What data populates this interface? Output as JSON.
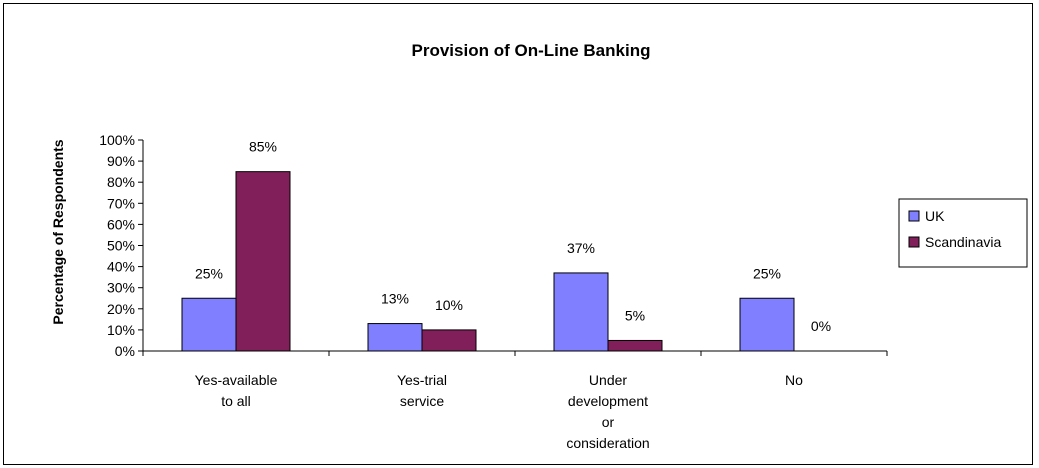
{
  "chart_data": {
    "type": "bar",
    "title": "Provision of On-Line Banking",
    "xlabel": "",
    "ylabel": "Percentage of Respondents",
    "ylim": [
      0,
      100
    ],
    "yticks": [
      "0%",
      "10%",
      "20%",
      "30%",
      "40%",
      "50%",
      "60%",
      "70%",
      "80%",
      "90%",
      "100%"
    ],
    "categories": [
      [
        "Yes-available",
        "to all"
      ],
      [
        "Yes-trial",
        "service"
      ],
      [
        "Under",
        "development",
        "or",
        "consideration"
      ],
      [
        "No"
      ]
    ],
    "series": [
      {
        "name": "UK",
        "color": "#7f7fff",
        "values": [
          25,
          13,
          37,
          25
        ],
        "labels": [
          "25%",
          "13%",
          "37%",
          "25%"
        ]
      },
      {
        "name": "Scandinavia",
        "color": "#801f5a",
        "values": [
          85,
          10,
          5,
          0
        ],
        "labels": [
          "85%",
          "10%",
          "5%",
          "0%"
        ]
      }
    ],
    "legend_position": "right",
    "grid": false
  }
}
